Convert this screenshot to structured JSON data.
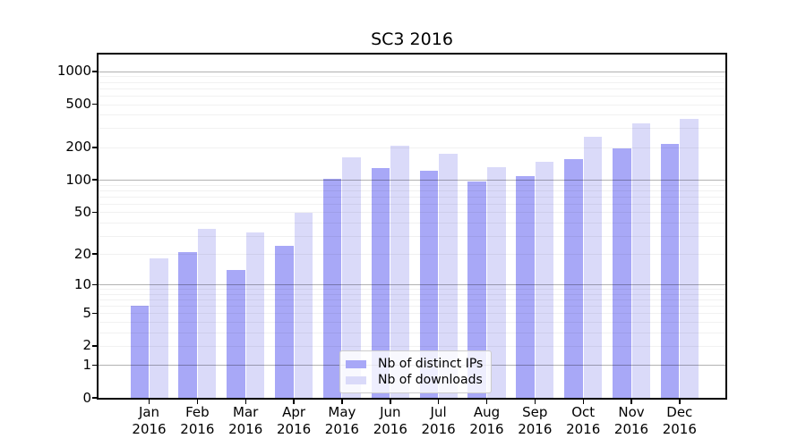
{
  "chart_data": {
    "type": "bar",
    "title": "SC3 2016",
    "categories": [
      "Jan",
      "Feb",
      "Mar",
      "Apr",
      "May",
      "Jun",
      "Jul",
      "Aug",
      "Sep",
      "Oct",
      "Nov",
      "Dec"
    ],
    "x_year": "2016",
    "series": [
      {
        "name": "Nb of distinct IPs",
        "color": "#a8a8f7",
        "values": [
          6,
          21,
          14,
          24,
          102,
          128,
          122,
          97,
          108,
          157,
          195,
          216
        ]
      },
      {
        "name": "Nb of downloads",
        "color": "#dadaf9",
        "values": [
          18,
          35,
          32,
          49,
          161,
          205,
          173,
          131,
          147,
          251,
          332,
          367
        ]
      }
    ],
    "y_ticks": [
      0,
      1,
      2,
      5,
      10,
      20,
      50,
      100,
      200,
      500,
      1000
    ],
    "ylim": [
      0,
      1430
    ],
    "yscale": "log1p",
    "grid": true,
    "legend_position": "lower center",
    "colors": {
      "axis": "#000000",
      "major_grid": "rgba(0,0,0,0.30)",
      "minor_grid": "rgba(0,0,0,0.055)",
      "background": "#ffffff"
    }
  }
}
